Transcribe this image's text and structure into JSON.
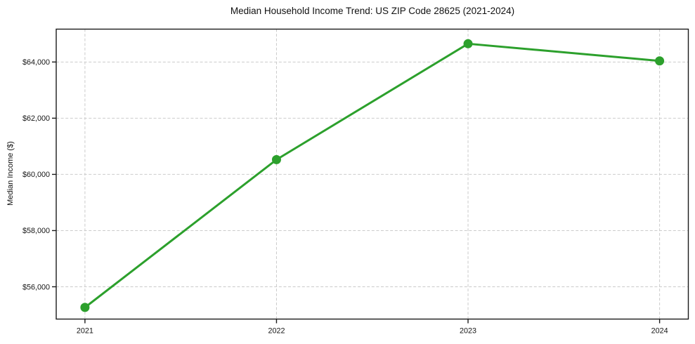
{
  "chart_data": {
    "type": "line",
    "title": "Median Household Income Trend: US ZIP Code 28625 (2021-2024)",
    "xlabel": "",
    "ylabel": "Median Income ($)",
    "x": [
      2021,
      2022,
      2023,
      2024
    ],
    "categories": [
      "2021",
      "2022",
      "2023",
      "2024"
    ],
    "series": [
      {
        "name": "Median Household Income",
        "values": [
          55265,
          60525,
          64650,
          64040
        ]
      }
    ],
    "yticks": [
      {
        "value": 56000,
        "label": "$56,000"
      },
      {
        "value": 58000,
        "label": "$58,000"
      },
      {
        "value": 60000,
        "label": "$60,000"
      },
      {
        "value": 62000,
        "label": "$62,000"
      },
      {
        "value": 64000,
        "label": "$64,000"
      }
    ],
    "ylim": [
      54850,
      65170
    ],
    "xlim": [
      2020.85,
      2024.15
    ],
    "grid": true,
    "grid_style": "dashed",
    "legend": "none",
    "line_color": "#2ca02c",
    "marker": "circle",
    "background": "#ffffff"
  }
}
